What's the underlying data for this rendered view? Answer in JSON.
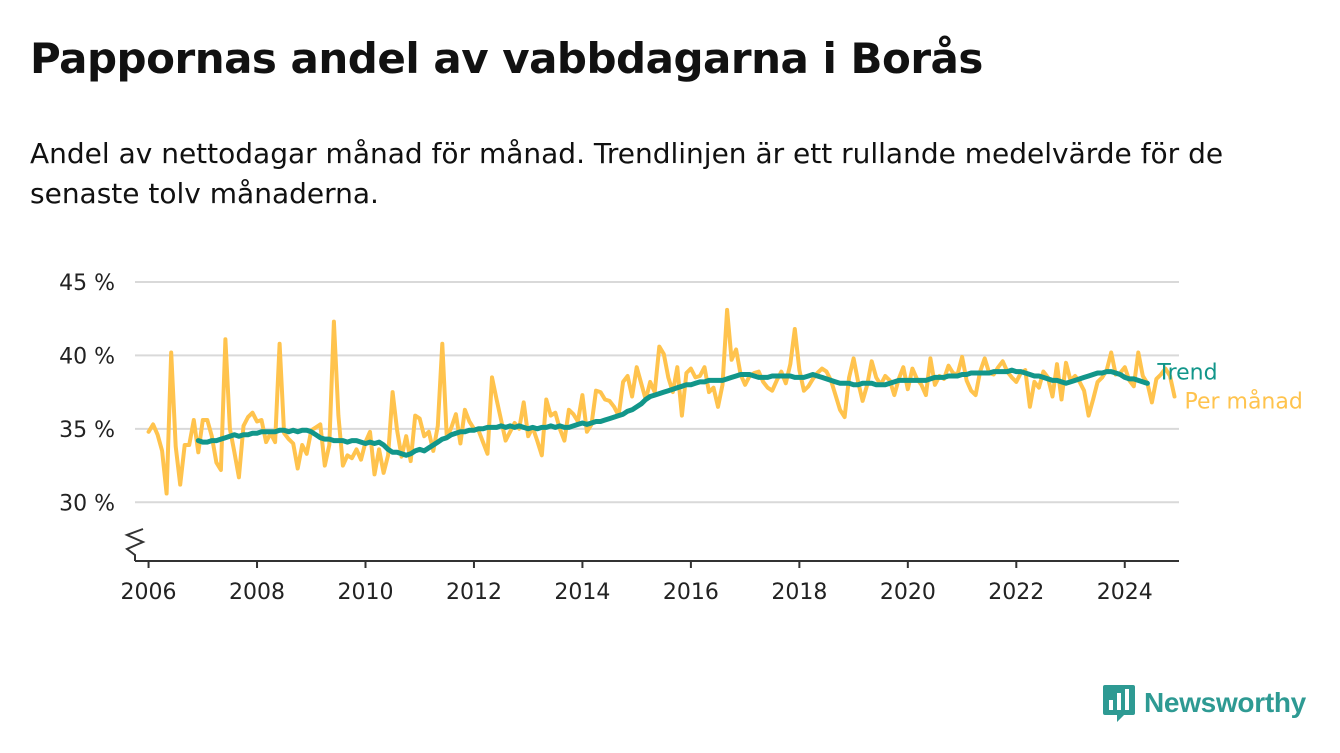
{
  "title": "Pappornas andel av vabbdagarna i Borås",
  "subtitle": "Andel av nettodagar månad för månad. Trendlinjen är ett rullande medelvärde för de senaste tolv månaderna.",
  "brand": {
    "name": "Newsworthy",
    "icon": "bar-chart-speech-bubble-icon",
    "color": "#2e9a93"
  },
  "colors": {
    "monthly": "#ffc34d",
    "trend": "#12968a",
    "grid": "#d9d9d9",
    "axis": "#333333"
  },
  "chart_data": {
    "type": "line",
    "xlabel": "",
    "ylabel": "",
    "xlim": [
      2005.75,
      2025.0
    ],
    "ylim": [
      26,
      45
    ],
    "x_ticks": [
      2006,
      2008,
      2010,
      2012,
      2014,
      2016,
      2018,
      2020,
      2022,
      2024
    ],
    "x_tick_labels": [
      "2006",
      "2008",
      "2010",
      "2012",
      "2014",
      "2016",
      "2018",
      "2020",
      "2022",
      "2024"
    ],
    "y_ticks": [
      30,
      35,
      40,
      45
    ],
    "y_tick_labels": [
      "30 %",
      "35 %",
      "40 %",
      "45 %"
    ],
    "y_axis_break": true,
    "grid": "horizontal",
    "legend": "series labels at right end of lines",
    "x_start": "2006-01",
    "series": [
      {
        "name": "Per månad",
        "color": "#ffc34d",
        "values": [
          34.8,
          35.3,
          34.6,
          33.5,
          30.6,
          40.2,
          33.8,
          31.2,
          33.9,
          33.9,
          35.6,
          33.4,
          35.6,
          35.6,
          34.5,
          32.7,
          32.2,
          41.1,
          35.0,
          33.4,
          31.7,
          35.2,
          35.8,
          36.1,
          35.5,
          35.6,
          34.1,
          34.7,
          34.1,
          40.8,
          34.7,
          34.3,
          34.0,
          32.3,
          33.9,
          33.3,
          34.9,
          35.1,
          35.3,
          32.5,
          33.9,
          42.3,
          35.9,
          32.5,
          33.2,
          33.0,
          33.6,
          32.9,
          34.1,
          34.8,
          31.9,
          33.6,
          32.0,
          33.2,
          37.5,
          34.9,
          33.1,
          34.5,
          32.8,
          35.9,
          35.7,
          34.5,
          34.8,
          33.5,
          35.2,
          40.8,
          34.4,
          35.1,
          36.0,
          34.0,
          36.3,
          35.5,
          35.0,
          34.9,
          34.1,
          33.3,
          38.5,
          37.0,
          35.6,
          34.2,
          34.8,
          35.4,
          35.0,
          36.8,
          34.5,
          35.1,
          34.2,
          33.2,
          37.0,
          35.9,
          36.1,
          35.0,
          34.2,
          36.3,
          36.0,
          35.5,
          37.3,
          34.8,
          35.3,
          37.6,
          37.5,
          37.0,
          36.9,
          36.5,
          35.9,
          38.2,
          38.6,
          37.2,
          39.2,
          38.1,
          37.0,
          38.2,
          37.5,
          40.6,
          40.1,
          38.5,
          37.5,
          39.2,
          35.9,
          38.8,
          39.1,
          38.5,
          38.6,
          39.2,
          37.5,
          37.8,
          36.5,
          38.0,
          43.1,
          39.7,
          40.4,
          38.7,
          38.0,
          38.6,
          38.8,
          38.9,
          38.2,
          37.8,
          37.6,
          38.3,
          38.9,
          38.1,
          39.4,
          41.8,
          39.0,
          37.6,
          37.9,
          38.4,
          38.8,
          39.1,
          38.9,
          38.3,
          37.3,
          36.3,
          35.8,
          38.5,
          39.8,
          38.2,
          36.9,
          38.0,
          39.6,
          38.5,
          38.0,
          38.6,
          38.3,
          37.3,
          38.4,
          39.2,
          37.7,
          39.1,
          38.4,
          38.0,
          37.3,
          39.8,
          38.0,
          38.6,
          38.4,
          39.3,
          38.8,
          38.7,
          39.9,
          38.3,
          37.6,
          37.3,
          38.9,
          39.8,
          38.8,
          38.7,
          39.2,
          39.6,
          38.9,
          38.5,
          38.2,
          38.8,
          39.0,
          36.5,
          38.2,
          37.8,
          38.9,
          38.5,
          37.2,
          39.4,
          37.0,
          39.5,
          38.3,
          38.6,
          38.2,
          37.6,
          35.9,
          37.0,
          38.2,
          38.5,
          39.0,
          40.2,
          38.7,
          38.8,
          39.2,
          38.3,
          37.9,
          40.2,
          38.6,
          38.1,
          36.8,
          38.4,
          38.7,
          39.1,
          38.6,
          37.2
        ]
      },
      {
        "name": "Trend",
        "color": "#12968a",
        "values": [
          null,
          null,
          null,
          null,
          null,
          null,
          null,
          null,
          null,
          null,
          null,
          34.2,
          34.1,
          34.1,
          34.2,
          34.2,
          34.3,
          34.4,
          34.5,
          34.6,
          34.5,
          34.6,
          34.6,
          34.7,
          34.7,
          34.8,
          34.8,
          34.8,
          34.8,
          34.9,
          34.9,
          34.8,
          34.9,
          34.8,
          34.9,
          34.9,
          34.8,
          34.6,
          34.4,
          34.3,
          34.3,
          34.2,
          34.2,
          34.2,
          34.1,
          34.2,
          34.2,
          34.1,
          34.0,
          34.1,
          34.0,
          34.1,
          33.9,
          33.6,
          33.4,
          33.4,
          33.3,
          33.2,
          33.3,
          33.5,
          33.6,
          33.5,
          33.7,
          33.9,
          34.1,
          34.3,
          34.4,
          34.6,
          34.7,
          34.8,
          34.8,
          34.9,
          34.9,
          35.0,
          35.0,
          35.1,
          35.1,
          35.1,
          35.2,
          35.1,
          35.2,
          35.1,
          35.2,
          35.1,
          35.0,
          35.1,
          35.0,
          35.1,
          35.1,
          35.2,
          35.1,
          35.2,
          35.1,
          35.1,
          35.2,
          35.3,
          35.4,
          35.3,
          35.4,
          35.5,
          35.5,
          35.6,
          35.7,
          35.8,
          35.9,
          36.0,
          36.2,
          36.3,
          36.5,
          36.7,
          37.0,
          37.2,
          37.3,
          37.4,
          37.5,
          37.6,
          37.7,
          37.8,
          37.9,
          38.0,
          38.0,
          38.1,
          38.2,
          38.2,
          38.3,
          38.3,
          38.3,
          38.3,
          38.4,
          38.5,
          38.6,
          38.7,
          38.7,
          38.7,
          38.6,
          38.5,
          38.5,
          38.5,
          38.6,
          38.6,
          38.6,
          38.6,
          38.6,
          38.5,
          38.5,
          38.5,
          38.6,
          38.7,
          38.6,
          38.5,
          38.4,
          38.3,
          38.2,
          38.1,
          38.1,
          38.1,
          38.0,
          38.0,
          38.1,
          38.1,
          38.1,
          38.0,
          38.0,
          38.0,
          38.1,
          38.2,
          38.3,
          38.3,
          38.3,
          38.3,
          38.3,
          38.3,
          38.3,
          38.4,
          38.5,
          38.5,
          38.5,
          38.6,
          38.6,
          38.6,
          38.7,
          38.7,
          38.8,
          38.8,
          38.8,
          38.8,
          38.8,
          38.9,
          38.9,
          38.9,
          38.9,
          39.0,
          38.9,
          38.9,
          38.8,
          38.7,
          38.6,
          38.6,
          38.5,
          38.4,
          38.3,
          38.3,
          38.2,
          38.1,
          38.2,
          38.3,
          38.4,
          38.5,
          38.6,
          38.7,
          38.8,
          38.8,
          38.9,
          38.9,
          38.8,
          38.7,
          38.5,
          38.4,
          38.4,
          38.3,
          38.2,
          38.1
        ]
      }
    ]
  }
}
